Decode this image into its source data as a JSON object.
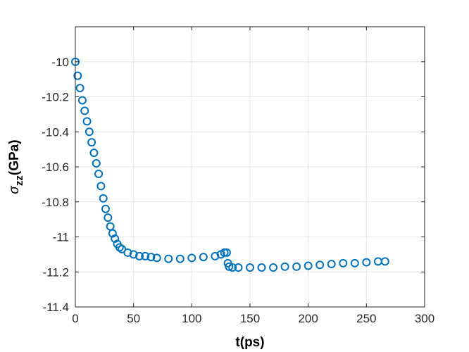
{
  "chart_data": {
    "type": "scatter",
    "xlabel": "t(ps)",
    "ylabel_main": "σ",
    "ylabel_sub": "zz",
    "ylabel_unit": "(GPa)",
    "xlim": [
      0,
      300
    ],
    "ylim": [
      -11.4,
      -9.8
    ],
    "xticks": [
      0,
      50,
      100,
      150,
      200,
      250,
      300
    ],
    "yticks": [
      -11.4,
      -11.2,
      -11,
      -10.8,
      -10.6,
      -10.4,
      -10.2,
      -10
    ],
    "xtick_labels": [
      "0",
      "50",
      "100",
      "150",
      "200",
      "250",
      "300"
    ],
    "ytick_labels": [
      "-11.4",
      "-11.2",
      "-11",
      "-10.8",
      "-10.6",
      "-10.4",
      "-10.2",
      "-10"
    ],
    "grid": true,
    "marker": "circle",
    "color": "#0072BD",
    "series": [
      {
        "x": [
          0,
          2,
          4,
          6,
          8,
          10,
          12,
          14,
          16,
          18,
          20,
          22,
          24,
          26,
          28,
          30,
          32,
          34,
          36,
          38,
          40,
          45,
          50,
          55,
          60,
          65,
          70,
          80,
          90,
          100,
          110,
          120,
          125,
          128,
          130,
          131,
          132,
          135,
          140,
          150,
          160,
          170,
          180,
          190,
          200,
          210,
          220,
          230,
          240,
          250,
          260,
          266
        ],
        "y": [
          -10.0,
          -10.08,
          -10.15,
          -10.22,
          -10.28,
          -10.34,
          -10.4,
          -10.46,
          -10.52,
          -10.58,
          -10.64,
          -10.71,
          -10.78,
          -10.84,
          -10.89,
          -10.94,
          -10.98,
          -11.01,
          -11.04,
          -11.06,
          -11.07,
          -11.09,
          -11.1,
          -11.11,
          -11.11,
          -11.115,
          -11.12,
          -11.125,
          -11.125,
          -11.12,
          -11.115,
          -11.11,
          -11.1,
          -11.09,
          -11.09,
          -11.15,
          -11.17,
          -11.175,
          -11.175,
          -11.175,
          -11.175,
          -11.175,
          -11.17,
          -11.17,
          -11.165,
          -11.16,
          -11.155,
          -11.15,
          -11.15,
          -11.145,
          -11.14,
          -11.14
        ]
      }
    ]
  }
}
